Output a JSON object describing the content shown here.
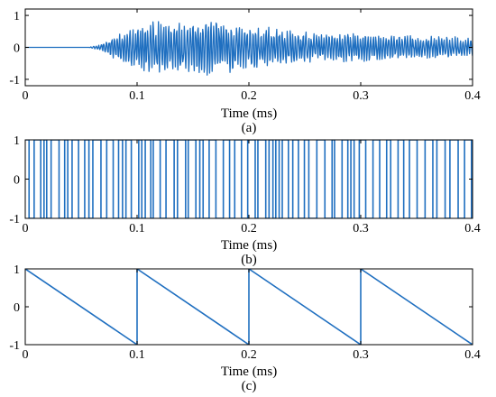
{
  "figure": {
    "line_color": "#1f6fc0",
    "axis_color": "#000000",
    "background": "#ffffff"
  },
  "chart_data": [
    {
      "type": "line",
      "caption": "(a)",
      "xlabel": "Time (ms)",
      "ylabel": "",
      "xlim": [
        0,
        0.4
      ],
      "ylim": [
        -1.2,
        1.2
      ],
      "xticks": [
        0,
        0.1,
        0.2,
        0.3,
        0.4
      ],
      "xtick_labels": [
        "0",
        "0.1",
        "0.2",
        "0.3",
        "0.4"
      ],
      "yticks": [
        -1,
        0,
        1
      ],
      "ytick_labels": [
        "-1",
        "0",
        "1"
      ],
      "grid": false,
      "series": [
        {
          "signal": "noise-burst",
          "onset_ms": 0.057,
          "envelope": {
            "x": [
              0,
              0.057,
              0.065,
              0.075,
              0.085,
              0.1,
              0.11,
              0.13,
              0.15,
              0.165,
              0.18,
              0.2,
              0.22,
              0.24,
              0.26,
              0.28,
              0.3,
              0.32,
              0.34,
              0.36,
              0.38,
              0.4
            ],
            "y": [
              0,
              0,
              0.08,
              0.25,
              0.5,
              0.65,
              0.85,
              0.8,
              0.85,
              0.95,
              0.8,
              0.7,
              0.65,
              0.55,
              0.45,
              0.5,
              0.45,
              0.42,
              0.4,
              0.38,
              0.35,
              0.3
            ]
          }
        }
      ]
    },
    {
      "type": "line",
      "caption": "(b)",
      "xlabel": "Time (ms)",
      "ylabel": "",
      "xlim": [
        0,
        0.4
      ],
      "ylim": [
        -1,
        1
      ],
      "xticks": [
        0,
        0.1,
        0.2,
        0.3,
        0.4
      ],
      "xtick_labels": [
        "0",
        "0.1",
        "0.2",
        "0.3",
        "0.4"
      ],
      "yticks": [
        -1,
        0,
        1
      ],
      "ytick_labels": [
        "-1",
        "0",
        "1"
      ],
      "grid": false,
      "series": [
        {
          "signal": "binary-square-wave",
          "levels": [
            -1,
            1
          ],
          "approx_cycles": 42
        }
      ]
    },
    {
      "type": "line",
      "caption": "(c)",
      "xlabel": "Time (ms)",
      "ylabel": "",
      "xlim": [
        0,
        0.4
      ],
      "ylim": [
        -1,
        1
      ],
      "xticks": [
        0,
        0.1,
        0.2,
        0.3,
        0.4
      ],
      "xtick_labels": [
        "0",
        "0.1",
        "0.2",
        "0.3",
        "0.4"
      ],
      "yticks": [
        -1,
        0,
        1
      ],
      "ytick_labels": [
        "-1",
        "0",
        "1"
      ],
      "grid": false,
      "series": [
        {
          "signal": "sawtooth",
          "period_ms": 0.1,
          "x": [
            0,
            0.1,
            0.1,
            0.2,
            0.2,
            0.3,
            0.3,
            0.4
          ],
          "y": [
            1,
            -1,
            1,
            -1,
            1,
            -1,
            1,
            -1
          ]
        }
      ]
    }
  ]
}
